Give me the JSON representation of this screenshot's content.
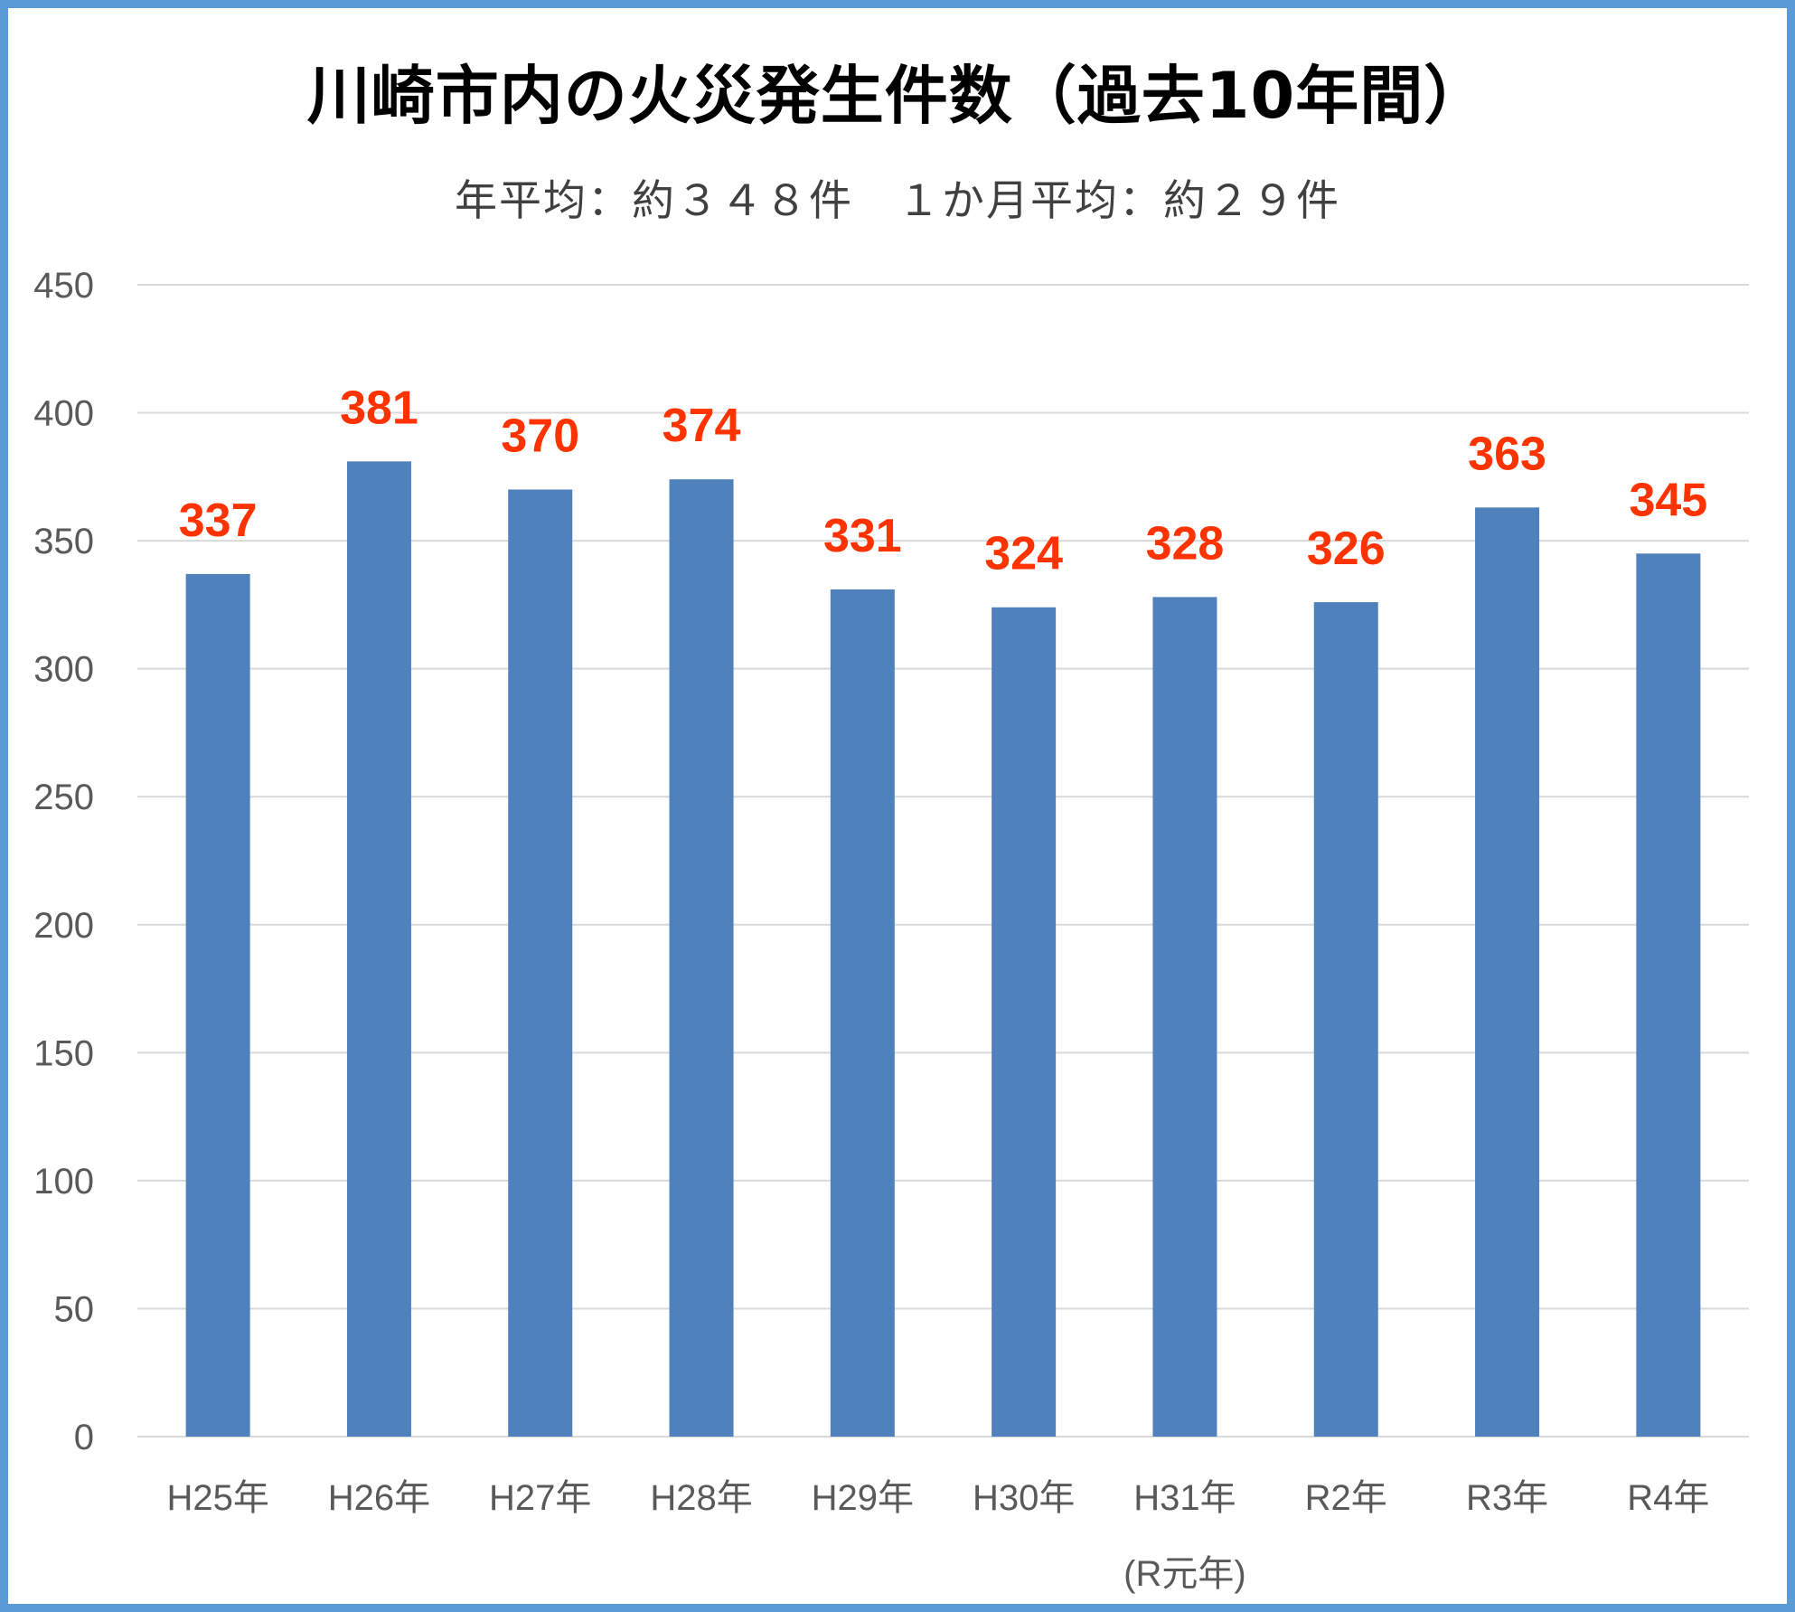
{
  "chart_data": {
    "type": "bar",
    "title": "川崎市内の火災発生件数（過去10年間）",
    "subtitle": "年平均：約３４８件　１か月平均：約２９件",
    "categories": [
      "H25年",
      "H26年",
      "H27年",
      "H28年",
      "H29年",
      "H30年",
      "H31年\n(R元年)",
      "R2年",
      "R3年",
      "R4年"
    ],
    "values": [
      337,
      381,
      370,
      374,
      331,
      324,
      328,
      326,
      363,
      345
    ],
    "ylim": [
      0,
      450
    ],
    "yticks": [
      0,
      50,
      100,
      150,
      200,
      250,
      300,
      350,
      400,
      450
    ],
    "grid": true,
    "colors": {
      "bar": "#4f81bd",
      "data_label": "#ff3300",
      "grid": "#d9d9d9",
      "axis_text": "#595959",
      "frame": "#5b9bd5"
    }
  }
}
